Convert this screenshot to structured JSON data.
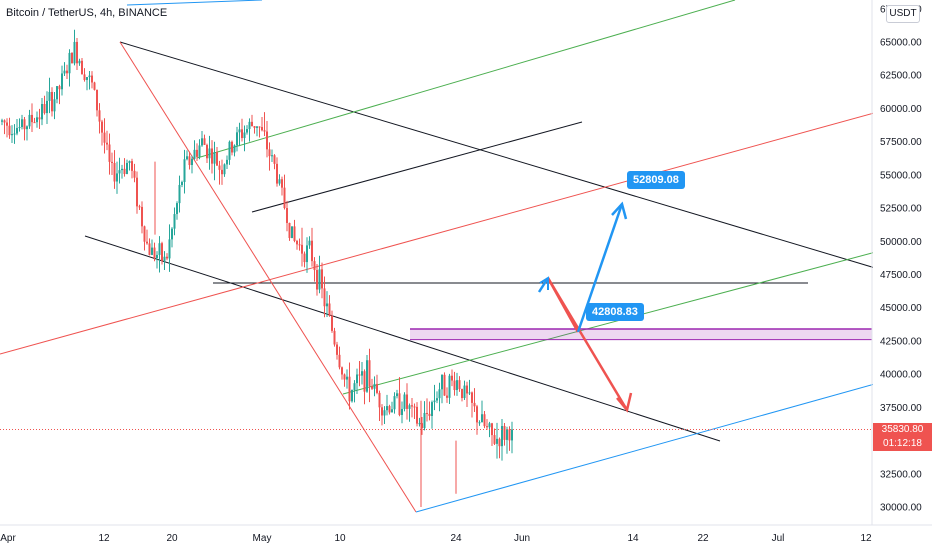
{
  "header": {
    "symbol": "Bitcoin / TetherUS",
    "interval": "4h",
    "exchange": "BINANCE",
    "title": "Bitcoin / TetherUS, 4h, BINANCE"
  },
  "currency_badge": "USDT",
  "last_price": {
    "value": "35830.80",
    "countdown": "01:12:18",
    "color": "#ef5350"
  },
  "callouts": {
    "target_high": "52809.08",
    "target_mid": "42808.83"
  },
  "colors": {
    "up": "#26a69a",
    "down": "#ef5350",
    "callout": "#2196f3",
    "line_black": "#131722",
    "line_red": "#ef5350",
    "line_green": "#4caf50",
    "line_blue": "#2196f3",
    "zone_purple": "#9c27b0"
  },
  "chart_data": {
    "type": "candlestick",
    "y_axis_labels": [
      "67500.00",
      "65000.00",
      "62500.00",
      "60000.00",
      "57500.00",
      "55000.00",
      "52500.00",
      "50000.00",
      "47500.00",
      "45000.00",
      "42500.00",
      "40000.00",
      "37500.00",
      "35000.00",
      "32500.00",
      "30000.00"
    ],
    "ylim": [
      28500,
      67500
    ],
    "x_axis_labels": [
      "Apr",
      "12",
      "20",
      "May",
      "10",
      "24",
      "Jun",
      "14",
      "22",
      "Jul",
      "12"
    ],
    "price_path": [
      {
        "d": "Apr",
        "p": 59000
      },
      {
        "d": "Apr 5",
        "p": 58500
      },
      {
        "d": "Apr 9",
        "p": 59500
      },
      {
        "d": "Apr 11",
        "p": 61000
      },
      {
        "d": "Apr 14",
        "p": 64500
      },
      {
        "d": "Apr 16",
        "p": 61500
      },
      {
        "d": "Apr 18",
        "p": 55000
      },
      {
        "d": "Apr 20",
        "p": 56000
      },
      {
        "d": "Apr 23",
        "p": 49500
      },
      {
        "d": "Apr 25",
        "p": 48500
      },
      {
        "d": "Apr 28",
        "p": 55500
      },
      {
        "d": "May",
        "p": 57500
      },
      {
        "d": "May 4",
        "p": 55500
      },
      {
        "d": "May 7",
        "p": 58000
      },
      {
        "d": "May 10",
        "p": 59000
      },
      {
        "d": "May 12",
        "p": 55500
      },
      {
        "d": "May 13",
        "p": 50000
      },
      {
        "d": "May 15",
        "p": 49000
      },
      {
        "d": "May 17",
        "p": 44000
      },
      {
        "d": "May 19",
        "p": 38500
      },
      {
        "d": "May 20",
        "p": 40000
      },
      {
        "d": "May 21",
        "p": 37500
      },
      {
        "d": "May 22",
        "p": 38000
      },
      {
        "d": "May 24",
        "p": 36000
      },
      {
        "d": "May 25",
        "p": 39000
      },
      {
        "d": "May 26",
        "p": 39500
      },
      {
        "d": "May 28",
        "p": 37000
      },
      {
        "d": "May 29",
        "p": 35000
      },
      {
        "d": "May 30",
        "p": 35830.8
      }
    ],
    "annotations": [
      {
        "label": "52809.08",
        "value": 52809.08
      },
      {
        "label": "42808.83",
        "value": 42808.83
      }
    ],
    "horizontal_levels": [
      46800
    ],
    "zone": [
      42600,
      43400
    ],
    "grid": false
  }
}
